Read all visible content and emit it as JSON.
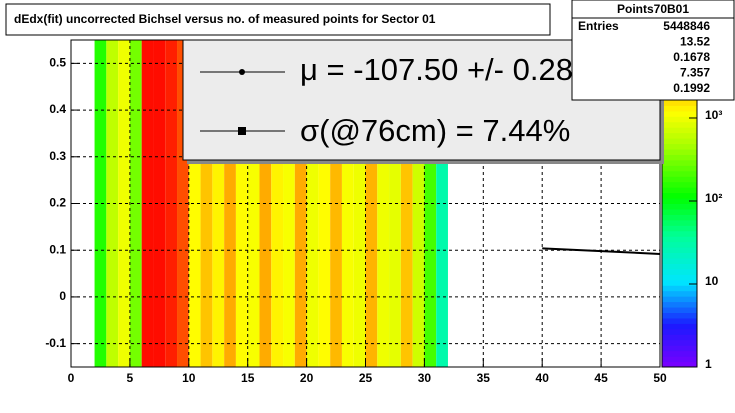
{
  "chart_data": {
    "type": "heatmap",
    "title": "dEdx(fit) uncorrected Bichsel versus no. of measured points for Sector 01",
    "x_bins": [
      2,
      3,
      4,
      5,
      6,
      7,
      8,
      9,
      10,
      11,
      12,
      13,
      14,
      15,
      16,
      17,
      18,
      19,
      20,
      21,
      22,
      23,
      24,
      25,
      26,
      27,
      28,
      29,
      30,
      31,
      32
    ],
    "values": [
      150,
      600,
      1000,
      300,
      8000,
      8000,
      7000,
      5000,
      1200,
      2000,
      1300,
      2500,
      1200,
      1100,
      2500,
      1300,
      1100,
      2500,
      1000,
      1200,
      2200,
      1100,
      1000,
      2300,
      1000,
      900,
      2000,
      700,
      200,
      30
    ],
    "xlim": [
      0,
      50
    ],
    "ylim": [
      -0.15,
      0.55
    ],
    "xticks": [
      0,
      5,
      10,
      15,
      20,
      25,
      30,
      35,
      40,
      45,
      50
    ],
    "yticks": [
      -0.1,
      0,
      0.1,
      0.2,
      0.3,
      0.4,
      0.5
    ],
    "zlim": [
      1,
      8700
    ],
    "z_log": true,
    "zticks": [
      1,
      {
        "value": 10,
        "label": "10"
      },
      {
        "value": 100,
        "label": "10²"
      },
      {
        "value": 1000,
        "label": "10³"
      }
    ],
    "grid": true,
    "fit_line": {
      "x": [
        40,
        50
      ],
      "y": [
        0.104,
        0.092
      ],
      "color": "#000000"
    },
    "legend": [
      "μ  = -107.50 +/-  0.28 %",
      "σ(@76cm) =  7.44%"
    ]
  },
  "stats": {
    "title": "Points70B01",
    "rows": [
      {
        "label": "Entries",
        "value": 5448846
      },
      {
        "value": 13.52
      },
      {
        "value": 0.1678
      },
      {
        "value": 7.357
      },
      {
        "value": 0.1992
      }
    ]
  }
}
